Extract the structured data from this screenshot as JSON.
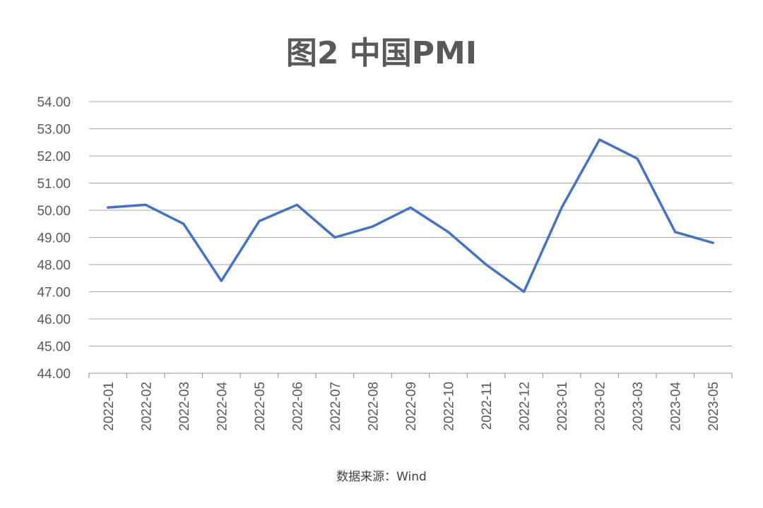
{
  "chart_data": {
    "type": "line",
    "title": "图2 中国PMI",
    "source": "数据来源：Wind",
    "categories": [
      "2022-01",
      "2022-02",
      "2022-03",
      "2022-04",
      "2022-05",
      "2022-06",
      "2022-07",
      "2022-08",
      "2022-09",
      "2022-10",
      "2022-11",
      "2022-12",
      "2023-01",
      "2023-02",
      "2023-03",
      "2023-04",
      "2023-05"
    ],
    "series": [
      {
        "values": [
          50.1,
          50.2,
          49.5,
          47.4,
          49.6,
          50.2,
          49.0,
          49.4,
          50.1,
          49.2,
          48.0,
          47.0,
          50.1,
          52.6,
          51.9,
          49.2,
          48.8
        ]
      }
    ],
    "ylim": [
      44,
      54
    ],
    "yticks": [
      "44.00",
      "45.00",
      "46.00",
      "47.00",
      "48.00",
      "49.00",
      "50.00",
      "51.00",
      "52.00",
      "53.00",
      "54.00"
    ],
    "grid": true,
    "legend": "none",
    "colors": {
      "line": "#4472C4",
      "grid": "#A6A6A6",
      "text": "#595959"
    }
  }
}
